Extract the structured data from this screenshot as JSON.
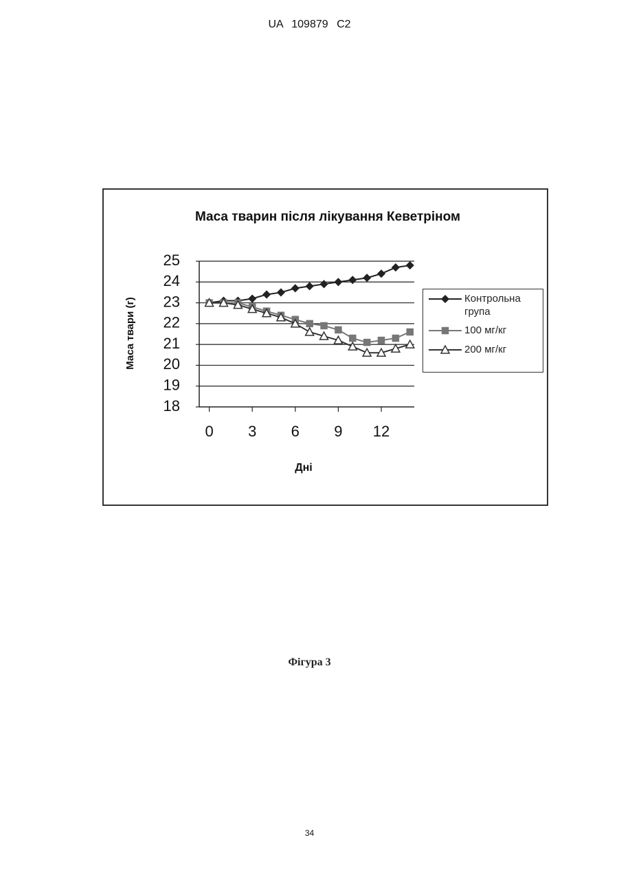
{
  "header": "UA 109879 C2",
  "caption": "Фігура 3",
  "page_number": "34",
  "chart_data": {
    "type": "line",
    "title": "Маса тварин після лікування Кеветріном",
    "xlabel": "Дні",
    "ylabel": "Маса твари (г)",
    "x": [
      0,
      1,
      2,
      3,
      4,
      5,
      6,
      7,
      8,
      9,
      10,
      11,
      12,
      13,
      14
    ],
    "series": [
      {
        "name": "Контрольна група",
        "color": "#222222",
        "marker": "diamond",
        "values": [
          23.0,
          23.1,
          23.1,
          23.2,
          23.4,
          23.5,
          23.7,
          23.8,
          23.9,
          24.0,
          24.1,
          24.2,
          24.4,
          24.7,
          24.8
        ]
      },
      {
        "name": "100 мг/кг",
        "color": "#777777",
        "marker": "square",
        "values": [
          23.0,
          23.0,
          23.0,
          22.8,
          22.6,
          22.4,
          22.2,
          22.0,
          21.9,
          21.7,
          21.3,
          21.1,
          21.2,
          21.3,
          21.6
        ]
      },
      {
        "name": "200 мг/кг",
        "color": "#333333",
        "marker": "triangle",
        "values": [
          23.0,
          23.0,
          22.9,
          22.7,
          22.5,
          22.3,
          22.0,
          21.6,
          21.4,
          21.2,
          20.9,
          20.6,
          20.6,
          20.8,
          21.0
        ]
      }
    ],
    "xlim": [
      -0.7,
      14.3
    ],
    "xticks": [
      0,
      3,
      6,
      9,
      12
    ],
    "ylim": [
      18,
      25
    ],
    "yticks": [
      18,
      19,
      20,
      21,
      22,
      23,
      24,
      25
    ],
    "grid": true,
    "legend": "right"
  }
}
